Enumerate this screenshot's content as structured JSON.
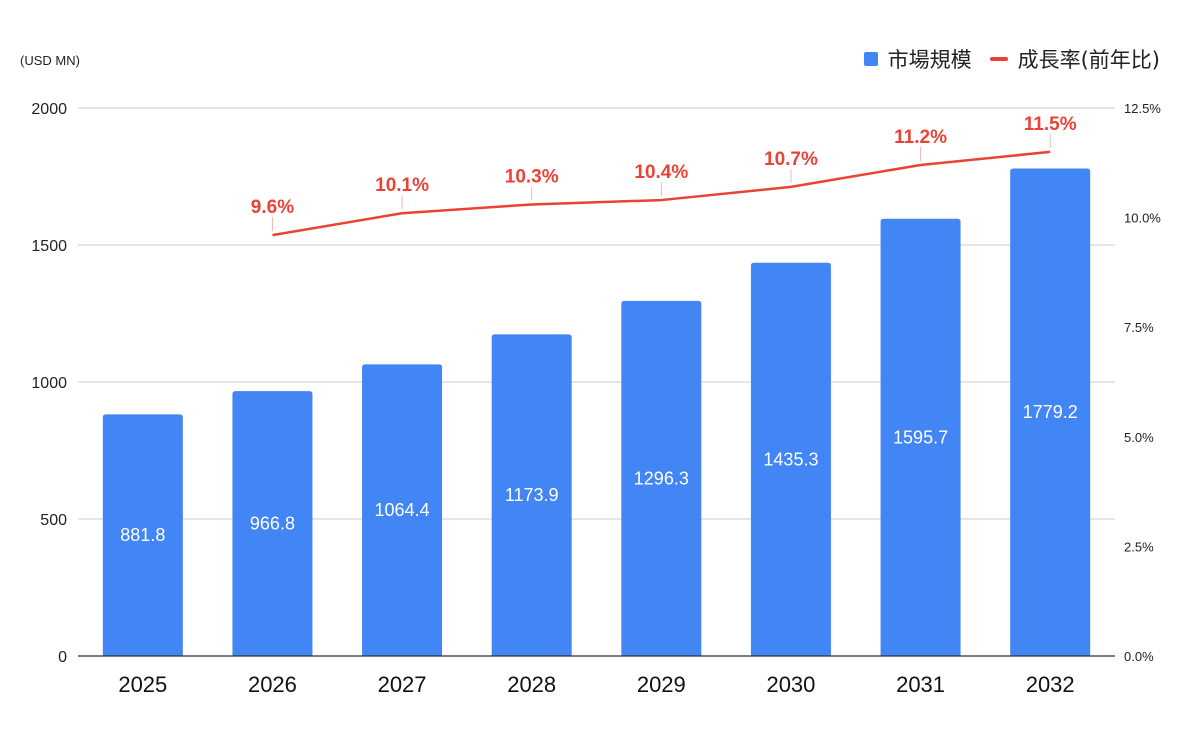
{
  "chart_data": {
    "type": "bar+line",
    "unit_label": "(USD MN)",
    "categories": [
      "2025",
      "2026",
      "2027",
      "2028",
      "2029",
      "2030",
      "2031",
      "2032"
    ],
    "series": [
      {
        "name": "市場規模",
        "type": "bar",
        "axis": "left",
        "color": "#4285f4",
        "values": [
          881.8,
          966.8,
          1064.4,
          1173.9,
          1296.3,
          1435.3,
          1595.7,
          1779.2
        ],
        "labels": [
          "881.8",
          "966.8",
          "1064.4",
          "1173.9",
          "1296.3",
          "1435.3",
          "1595.7",
          "1779.2"
        ]
      },
      {
        "name": "成長率(前年比)",
        "type": "line",
        "axis": "right",
        "color": "#ea4335",
        "values": [
          null,
          9.6,
          10.1,
          10.3,
          10.4,
          10.7,
          11.2,
          11.5
        ],
        "labels": [
          "",
          "9.6%",
          "10.1%",
          "10.3%",
          "10.4%",
          "10.7%",
          "11.2%",
          "11.5%"
        ]
      }
    ],
    "y_left": {
      "min": 0,
      "max": 2000,
      "ticks": [
        "0",
        "500",
        "1000",
        "1500",
        "2000"
      ],
      "tick_values": [
        0,
        500,
        1000,
        1500,
        2000
      ]
    },
    "y_right": {
      "min": 0,
      "max": 12.5,
      "ticks": [
        "0.0%",
        "2.5%",
        "5.0%",
        "7.5%",
        "10.0%",
        "12.5%"
      ],
      "tick_values": [
        0,
        2.5,
        5,
        7.5,
        10,
        12.5
      ]
    },
    "grid": true,
    "legend_position": "top-right"
  }
}
